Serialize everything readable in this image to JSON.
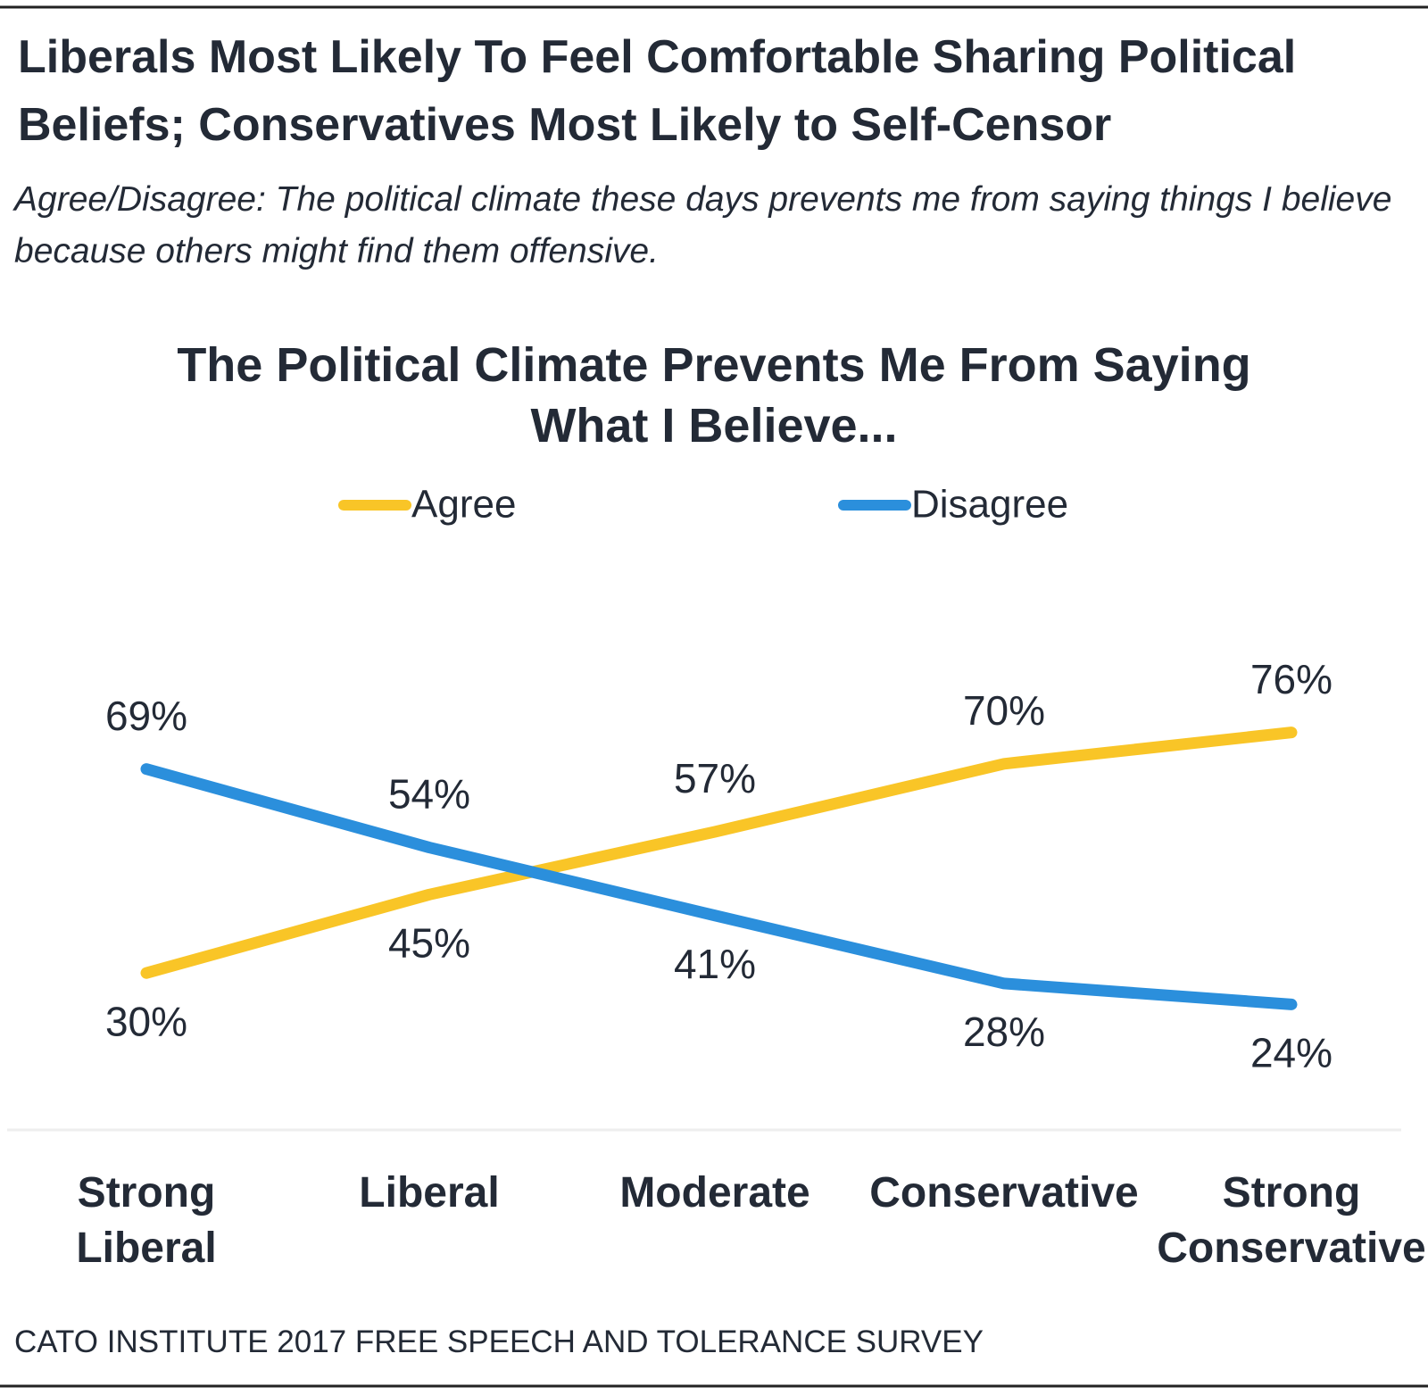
{
  "chart_data": {
    "type": "line",
    "heading": "Liberals Most Likely To Feel Comfortable Sharing Political Beliefs; Conservatives Most Likely to Self-Censor",
    "subtitle": "Agree/Disagree: The political climate these days prevents me from saying things I believe because others might find them offensive.",
    "title": "The Political Climate Prevents Me From Saying What I Believe...",
    "categories": [
      "Strong Liberal",
      "Liberal",
      "Moderate",
      "Conservative",
      "Strong Conservative"
    ],
    "series": [
      {
        "name": "Agree",
        "color": "#f9c527",
        "values": [
          30,
          45,
          57,
          70,
          76
        ],
        "value_labels": [
          "30%",
          "45%",
          "57%",
          "70%",
          "76%"
        ]
      },
      {
        "name": "Disagree",
        "color": "#2b8fdc",
        "values": [
          69,
          54,
          41,
          28,
          24
        ],
        "value_labels": [
          "69%",
          "54%",
          "41%",
          "28%",
          "24%"
        ]
      }
    ],
    "ylim": [
      0,
      100
    ],
    "source": "CATO INSTITUTE 2017 FREE SPEECH AND TOLERANCE SURVEY"
  }
}
